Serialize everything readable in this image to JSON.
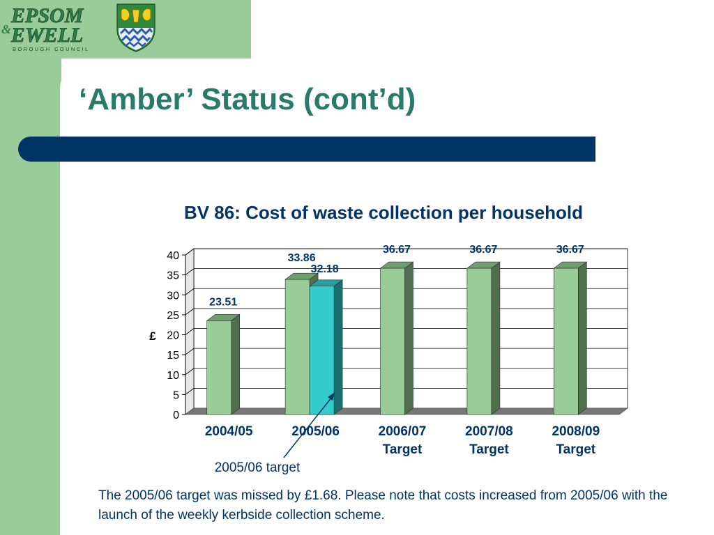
{
  "logo": {
    "line1": "EPSOM",
    "ampersand": "&",
    "line2": "EWELL",
    "line3": "BOROUGH COUNCIL",
    "crest_icon": "council-crest-icon"
  },
  "slide": {
    "title": "‘Amber’ Status (cont’d)"
  },
  "colors": {
    "band_green": "#99cc99",
    "title_teal": "#2a7a6a",
    "navy": "#003366",
    "bar_green": "#99cc99",
    "bar_cyan": "#33cccc"
  },
  "chart_data": {
    "type": "bar",
    "title": "BV 86: Cost of waste collection per household",
    "ylabel": "£",
    "xlabel": "",
    "ylim": [
      0,
      40
    ],
    "yticks": [
      "0",
      "5",
      "10",
      "15",
      "20",
      "25",
      "30",
      "35",
      "40"
    ],
    "grid": true,
    "categories": [
      [
        "2004/05"
      ],
      [
        "2005/06"
      ],
      [
        "2006/07",
        "Target"
      ],
      [
        "2007/08",
        "Target"
      ],
      [
        "2008/09",
        "Target"
      ]
    ],
    "series": [
      {
        "values": [
          23.51,
          33.86,
          36.67,
          36.67,
          36.67
        ],
        "labels": [
          "23.51",
          "33.86",
          "36.67",
          "36.67",
          "36.67"
        ],
        "color": "#99cc99"
      },
      {
        "values": [
          null,
          32.18,
          null,
          null,
          null
        ],
        "labels": [
          "",
          "32.18",
          "",
          "",
          ""
        ],
        "color": "#33cccc"
      }
    ],
    "annotation": "2005/06 target"
  },
  "note": "The 2005/06 target was missed by £1.68.  Please note that costs increased from 2005/06 with the launch of the weekly kerbside collection scheme."
}
